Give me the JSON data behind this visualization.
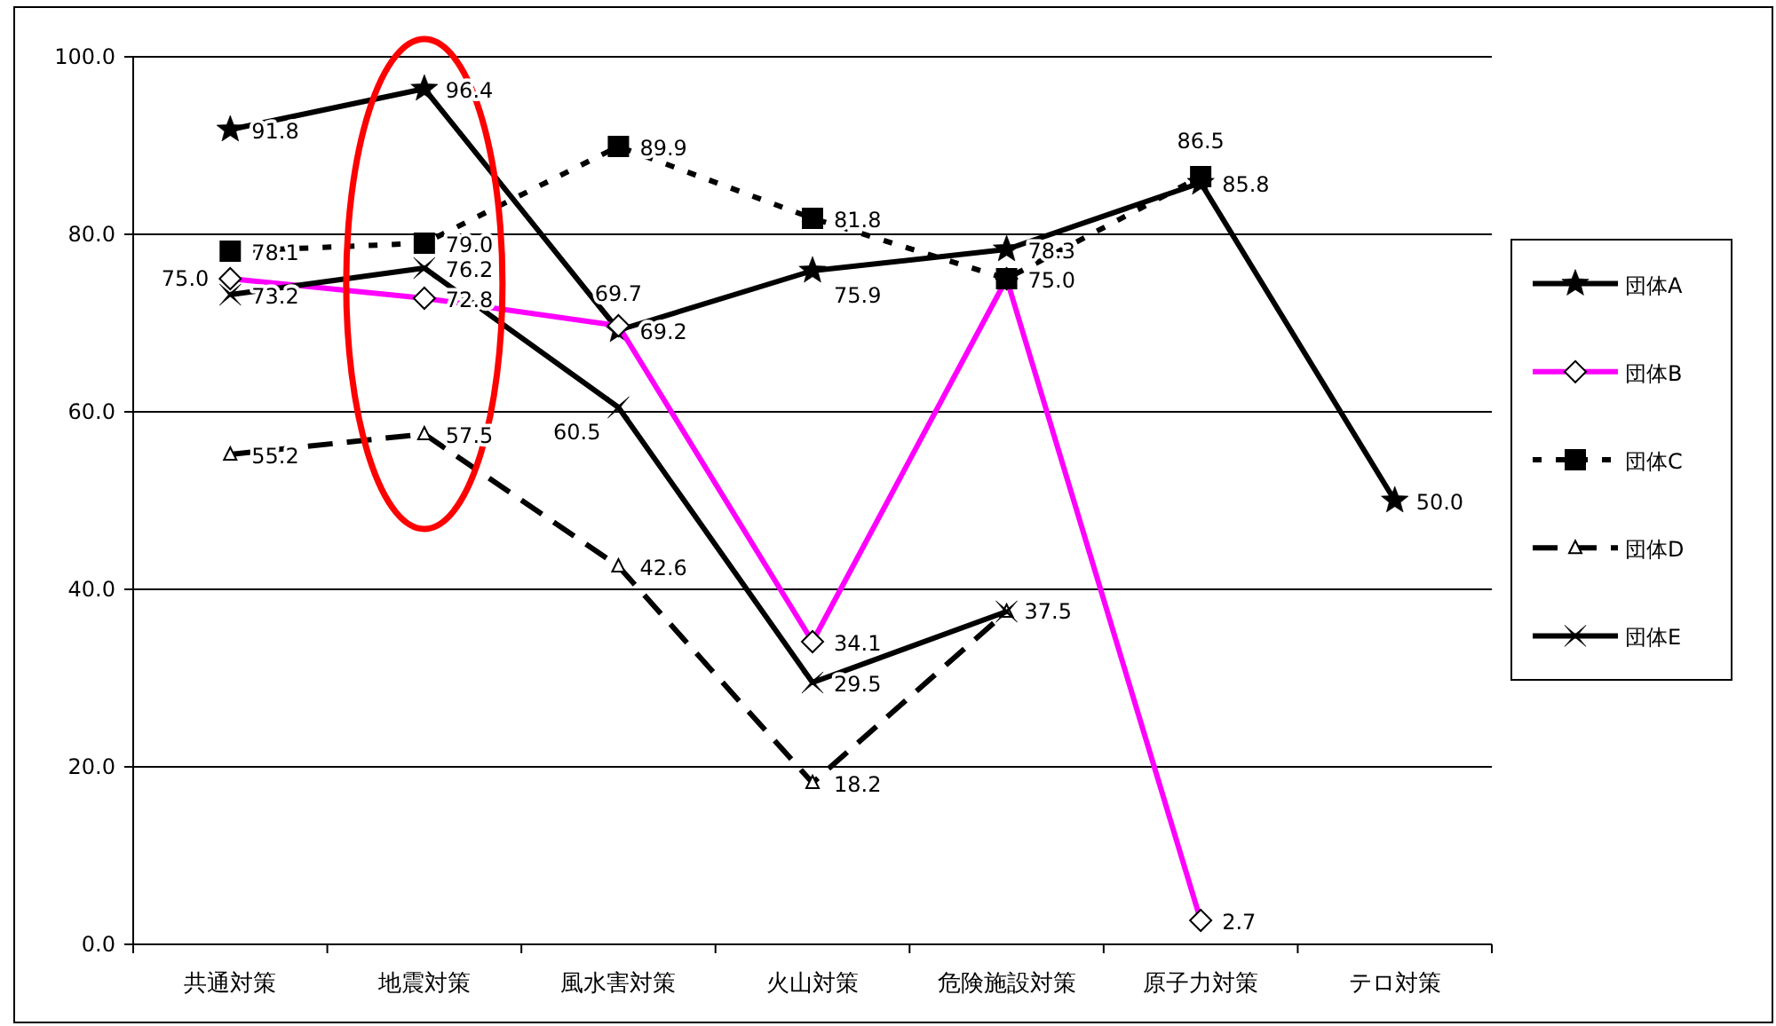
{
  "chart_data": {
    "type": "line",
    "categories": [
      "共通対策",
      "地震対策",
      "風水害対策",
      "火山対策",
      "危険施設対策",
      "原子力対策",
      "テロ対策"
    ],
    "series": [
      {
        "name": "団体A",
        "color": "#000000",
        "marker": "star",
        "line_style": "solid",
        "values": [
          91.8,
          96.4,
          69.2,
          75.9,
          78.3,
          85.8,
          50.0
        ],
        "value_labels": [
          "91.8",
          "96.4",
          "69.2",
          "75.9",
          "78.3",
          "85.8",
          "50.0"
        ]
      },
      {
        "name": "団体B",
        "color": "#ff00ff",
        "marker": "diamond",
        "line_style": "solid",
        "values": [
          75.0,
          72.8,
          69.7,
          34.1,
          75.0,
          2.7,
          null
        ],
        "value_labels": [
          "75.0",
          "72.8",
          "69.7",
          "34.1",
          null,
          "2.7",
          null
        ]
      },
      {
        "name": "団体C",
        "color": "#000000",
        "marker": "square",
        "line_style": "dotted",
        "values": [
          78.1,
          79.0,
          89.9,
          81.8,
          75.0,
          86.5,
          null
        ],
        "value_labels": [
          "78.1",
          "79.0",
          "89.9",
          "81.8",
          "75.0",
          "86.5",
          null
        ]
      },
      {
        "name": "団体D",
        "color": "#000000",
        "marker": "triangle",
        "line_style": "dashed",
        "values": [
          55.2,
          57.5,
          42.6,
          18.2,
          37.5,
          null,
          null
        ],
        "value_labels": [
          "55.2",
          "57.5",
          "42.6",
          "18.2",
          null,
          null,
          null
        ]
      },
      {
        "name": "団体E",
        "color": "#000000",
        "marker": "cross",
        "line_style": "solid",
        "values": [
          73.2,
          76.2,
          60.5,
          29.5,
          37.5,
          null,
          null
        ],
        "value_labels": [
          "73.2",
          "76.2",
          "60.5",
          "29.5",
          "37.5",
          null,
          null
        ]
      }
    ],
    "ylim": [
      0,
      100
    ],
    "yticks": [
      {
        "value": 0,
        "label": "0.0"
      },
      {
        "value": 20,
        "label": "20.0"
      },
      {
        "value": 40,
        "label": "40.0"
      },
      {
        "value": 60,
        "label": "60.0"
      },
      {
        "value": 80,
        "label": "80.0"
      },
      {
        "value": 100,
        "label": "100.0"
      }
    ],
    "grid": "y",
    "legend": "right"
  }
}
